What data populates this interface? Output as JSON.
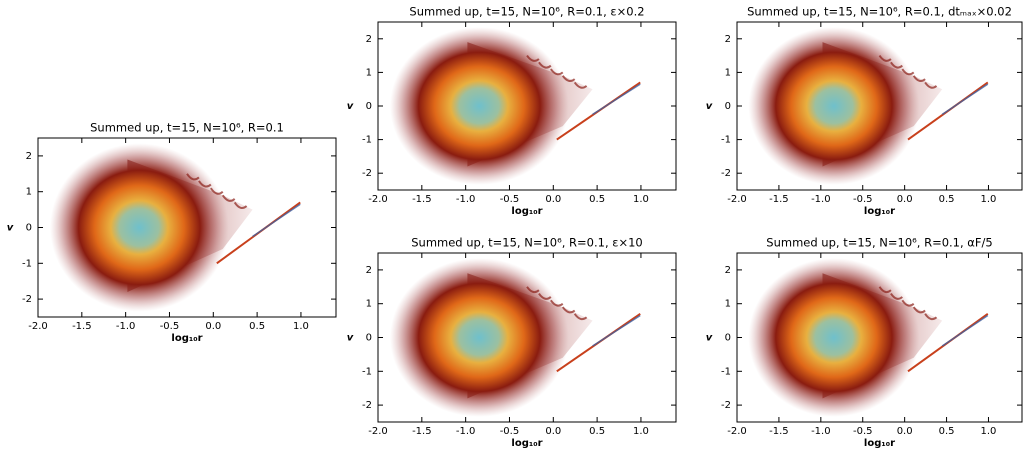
{
  "chart_data": [
    {
      "type": "density",
      "title": "Summed up, t=15, N=10⁶, R=0.1",
      "xlabel": "log₁₀r",
      "ylabel": "v",
      "xlim": [
        -2.0,
        1.4
      ],
      "ylim": [
        -2.5,
        2.5
      ],
      "xticks": [
        {
          "value": -2,
          "label": "-2.0"
        },
        {
          "value": -1.5,
          "label": "-1.5"
        },
        {
          "value": -1,
          "label": "-1.0"
        },
        {
          "value": -0.5,
          "label": "-0.5"
        },
        {
          "value": 0,
          "label": "0.0"
        },
        0.5,
        {
          "value": 1,
          "label": "1.0"
        }
      ],
      "yticks": [
        -2,
        -1,
        0,
        1,
        2
      ]
    },
    {
      "type": "density",
      "title": "Summed up, t=15, N=10⁶, R=0.1, ε×0.2",
      "xlabel": "log₁₀r",
      "ylabel": "v",
      "xlim": [
        -2.0,
        1.4
      ],
      "ylim": [
        -2.5,
        2.5
      ],
      "xticks": [
        {
          "value": -2,
          "label": "-2.0"
        },
        {
          "value": -1.5,
          "label": "-1.5"
        },
        {
          "value": -1,
          "label": "-1.0"
        },
        {
          "value": -0.5,
          "label": "-0.5"
        },
        {
          "value": 0,
          "label": "0.0"
        },
        0.5,
        {
          "value": 1,
          "label": "1.0"
        }
      ],
      "yticks": [
        -2,
        -1,
        0,
        1,
        2
      ]
    },
    {
      "type": "density",
      "title": "Summed up, t=15, N=10⁶, R=0.1, dtₘₐₓ×0.02",
      "xlabel": "log₁₀r",
      "ylabel": "v",
      "xlim": [
        -2.0,
        1.4
      ],
      "ylim": [
        -2.5,
        2.5
      ],
      "xticks": [
        {
          "value": -2,
          "label": "-2.0"
        },
        {
          "value": -1.5,
          "label": "-1.5"
        },
        {
          "value": -1,
          "label": "-1.0"
        },
        {
          "value": -0.5,
          "label": "-0.5"
        },
        {
          "value": 0,
          "label": "0.0"
        },
        0.5,
        {
          "value": 1,
          "label": "1.0"
        }
      ],
      "yticks": [
        -2,
        -1,
        0,
        1,
        2
      ]
    },
    {
      "type": "density",
      "title": "Summed up, t=15, N=10⁶, R=0.1, ε×10",
      "xlabel": "log₁₀r",
      "ylabel": "v",
      "xlim": [
        -2.0,
        1.4
      ],
      "ylim": [
        -2.5,
        2.5
      ],
      "xticks": [
        {
          "value": -2,
          "label": "-2.0"
        },
        {
          "value": -1.5,
          "label": "-1.5"
        },
        {
          "value": -1,
          "label": "-1.0"
        },
        {
          "value": -0.5,
          "label": "-0.5"
        },
        {
          "value": 0,
          "label": "0.0"
        },
        0.5,
        {
          "value": 1,
          "label": "1.0"
        }
      ],
      "yticks": [
        -2,
        -1,
        0,
        1,
        2
      ]
    },
    {
      "type": "density",
      "title": "Summed up, t=15, N=10⁶, R=0.1, αF/5",
      "xlabel": "log₁₀r",
      "ylabel": "v",
      "xlim": [
        -2.0,
        1.4
      ],
      "ylim": [
        -2.5,
        2.5
      ],
      "xticks": [
        {
          "value": -2,
          "label": "-2.0"
        },
        {
          "value": -1.5,
          "label": "-1.5"
        },
        {
          "value": -1,
          "label": "-1.0"
        },
        {
          "value": -0.5,
          "label": "-0.5"
        },
        {
          "value": 0,
          "label": "0.0"
        },
        0.5,
        {
          "value": 1,
          "label": "1.0"
        }
      ],
      "yticks": [
        -2,
        -1,
        0,
        1,
        2
      ]
    }
  ]
}
